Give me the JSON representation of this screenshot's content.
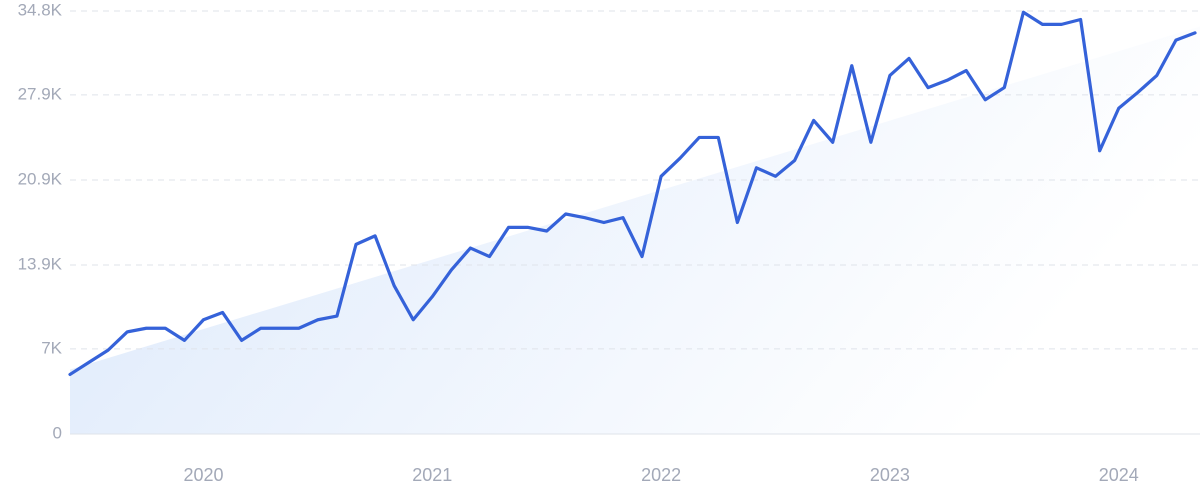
{
  "chart_data": {
    "type": "line",
    "categories": [
      null,
      null,
      null,
      null,
      null,
      null,
      null,
      "2020",
      null,
      null,
      null,
      null,
      null,
      null,
      null,
      null,
      null,
      null,
      null,
      "2021",
      null,
      null,
      null,
      null,
      null,
      null,
      null,
      null,
      null,
      null,
      null,
      "2022",
      null,
      null,
      null,
      null,
      null,
      null,
      null,
      null,
      null,
      null,
      null,
      "2023",
      null,
      null,
      null,
      null,
      null,
      null,
      null,
      null,
      null,
      null,
      null,
      "2024",
      null,
      null,
      null,
      null
    ],
    "series": [
      {
        "color": "#3562d9",
        "values": [
          4900,
          5900,
          6900,
          8400,
          8700,
          8700,
          7700,
          9400,
          10000,
          7700,
          8700,
          8700,
          8700,
          9400,
          9700,
          15600,
          16300,
          12200,
          9400,
          11300,
          13500,
          15300,
          14600,
          17000,
          17000,
          16700,
          18100,
          17800,
          17400,
          17800,
          14600,
          21200,
          22700,
          24400,
          24400,
          17400,
          21900,
          21200,
          22500,
          25800,
          24000,
          30300,
          24000,
          29500,
          30900,
          28500,
          29100,
          29900,
          27500,
          28500,
          34700,
          33700,
          33700,
          34100,
          23300,
          26800,
          28100,
          29500,
          32400,
          33000
        ]
      }
    ],
    "trend": {
      "color": "#dbe8fb",
      "values": [
        5300,
        33400
      ]
    },
    "ylim": [
      0,
      34800
    ],
    "yticks": [
      0,
      {
        "value": 7000,
        "label": "7K"
      },
      {
        "value": 13900,
        "label": "13.9K"
      },
      {
        "value": 20900,
        "label": "20.9K"
      },
      {
        "value": 27900,
        "label": "27.9K"
      },
      {
        "value": 34800,
        "label": "34.8K"
      }
    ],
    "grid": true
  }
}
